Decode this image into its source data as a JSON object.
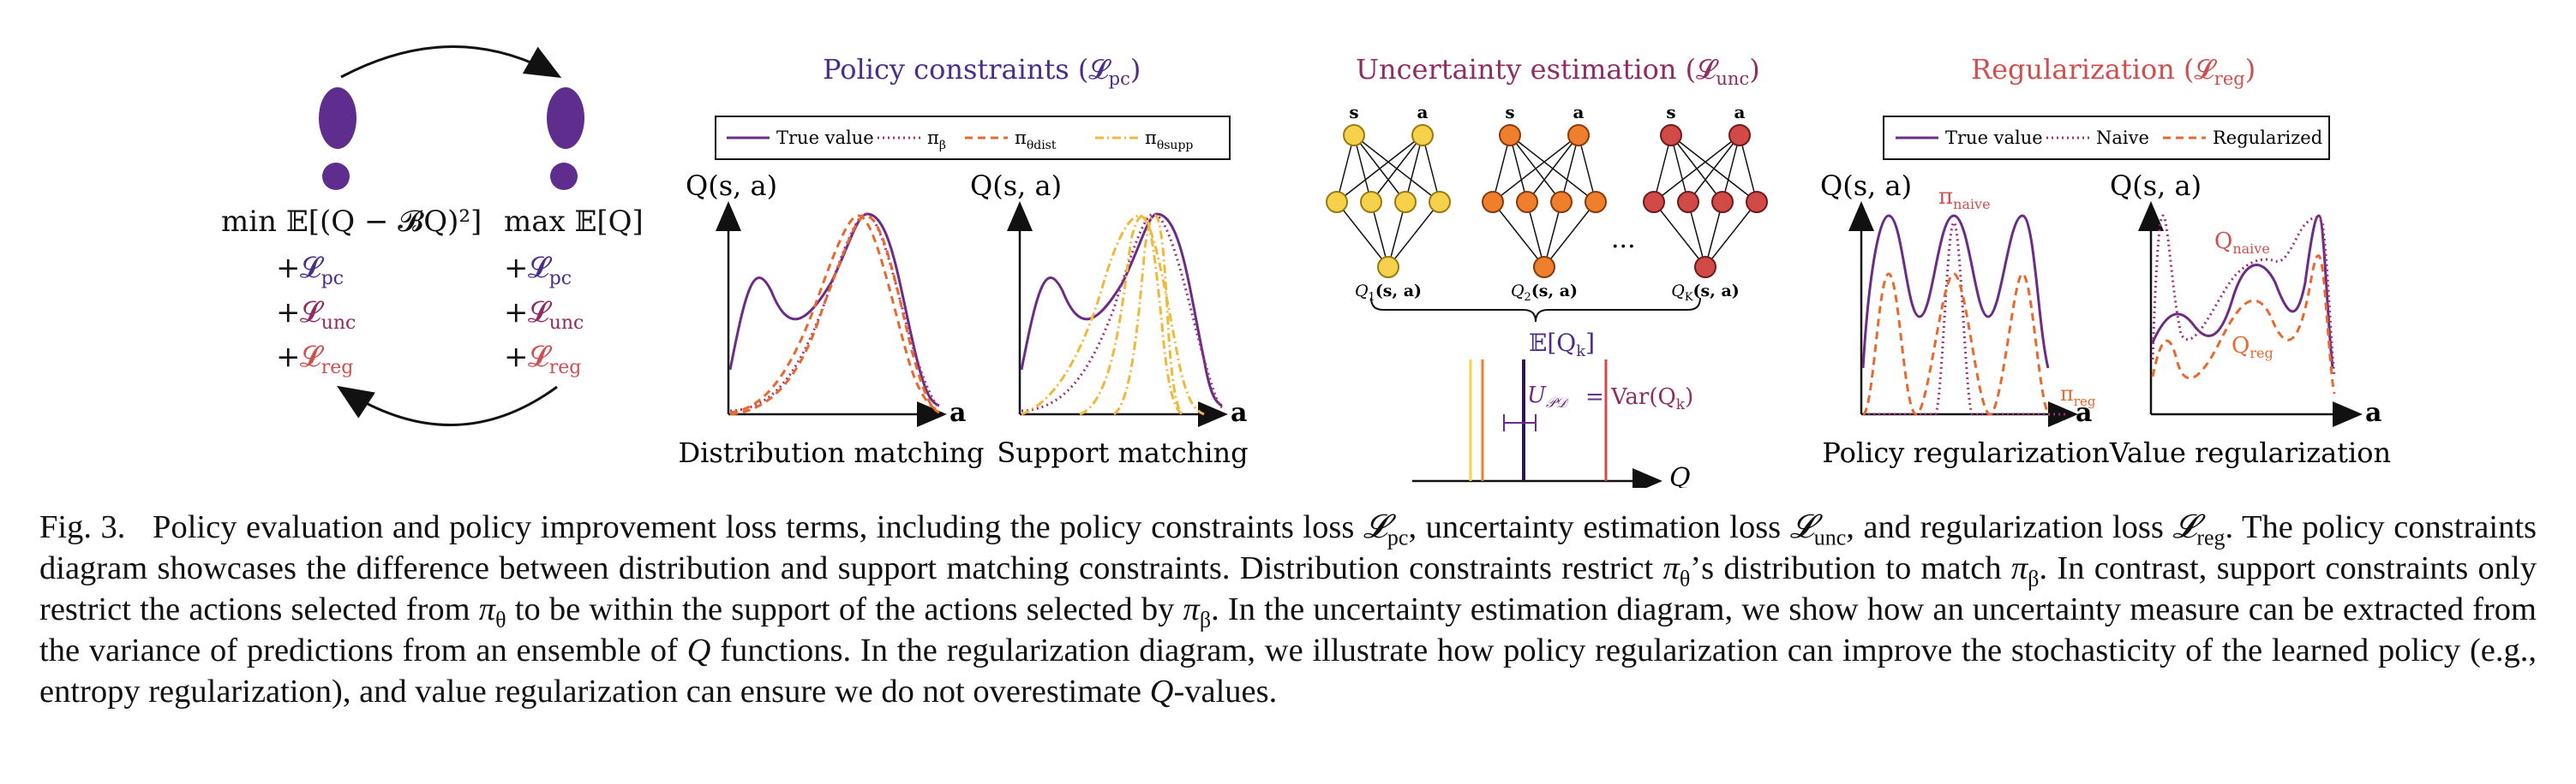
{
  "colors": {
    "purple": "#6a2c86",
    "purple_deep": "#3f1b68",
    "red": "#cf4f4f",
    "orange": "#e8692e",
    "yellow_fill": "#f6d24c",
    "orange_fill": "#ee7f2d",
    "red_fill": "#d14a47",
    "gold": "#f0b83c"
  },
  "left_panel": {
    "min_expr": "min 𝔼[(Q − 𝓑Q)²]",
    "max_expr": "max 𝔼[Q]",
    "plus": "+",
    "terms": [
      "𝓛",
      "𝓛",
      "𝓛"
    ],
    "term_subs": [
      "pc",
      "unc",
      "reg"
    ],
    "icons": [
      "footprint-icon",
      "footprint-icon"
    ]
  },
  "policy_constraints": {
    "title": "Policy constraints (",
    "title_sym": "𝓛",
    "title_sub": "pc",
    "title_close": ")",
    "legend": {
      "true_value": "True value",
      "pi_beta": "π",
      "pi_beta_sub": "β",
      "pi_dist": "π",
      "pi_dist_sub": "θdist",
      "pi_supp": "π",
      "pi_supp_sub": "θsupp"
    },
    "plots": [
      {
        "ylabel": "Q(s, a)",
        "xlabel": "a",
        "caption": "Distribution matching"
      },
      {
        "ylabel": "Q(s, a)",
        "xlabel": "a",
        "caption": "Support matching"
      }
    ]
  },
  "uncertainty": {
    "title": "Uncertainty estimation (",
    "title_sym": "𝓛",
    "title_sub": "unc",
    "title_close": ")",
    "input_labels": [
      "s",
      "a"
    ],
    "nets": [
      {
        "output_label": "Q",
        "output_sub": "1",
        "output_args": "(s, a)"
      },
      {
        "output_label": "Q",
        "output_sub": "2",
        "output_args": "(s, a)"
      },
      {
        "output_label": "Q",
        "output_sub": "K",
        "output_args": "(s, a)"
      }
    ],
    "ellipsis": "···",
    "expectation": "𝔼[Q",
    "expectation_sub": "k",
    "expectation_close": "]",
    "u_label": "U",
    "u_sub": "𝒫𝒟",
    "equals": "=",
    "var_label": "Var(Q",
    "var_sub": "k",
    "var_close": ")",
    "q_axis": "Q"
  },
  "regularization": {
    "title": "Regularization (",
    "title_sym": "𝓛",
    "title_sub": "reg",
    "title_close": ")",
    "legend": {
      "true_value": "True value",
      "naive": "Naive",
      "regularized": "Regularized"
    },
    "plots": [
      {
        "ylabel": "Q(s, a)",
        "xlabel": "a",
        "caption": "Policy regularization",
        "top_label": "π",
        "top_sub": "naive",
        "side_label": "π",
        "side_sub": "reg"
      },
      {
        "ylabel": "Q(s, a)",
        "xlabel": "a",
        "caption": "Value regularization",
        "top_label": "Q",
        "top_sub": "naive",
        "side_label": "Q",
        "side_sub": "reg"
      }
    ]
  },
  "caption": {
    "fig": "Fig. 3.",
    "s1": "Policy evaluation and policy improvement loss terms, including the policy constraints loss ",
    "l_pc": "pc",
    "s2": ", uncertainty estimation loss ",
    "l_unc": "unc",
    "s3": ", and regularization loss ",
    "l_reg": "reg",
    "s4": ". The policy constraints diagram showcases the difference between distribution and support matching constraints. Distribution constraints restrict ",
    "s5": "’s distribution to match ",
    "s6": ". In contrast, support constraints only restrict the actions selected from ",
    "s7": " to be within the support of the actions selected by ",
    "s8": ". In the uncertainty estimation diagram, we show how an uncertainty measure can be extracted from the variance of predictions from an ensemble of ",
    "s9": " functions. In the regularization diagram, we illustrate how policy regularization can improve the stochasticity of the learned policy (e.g., entropy regularization), and value regularization can ensure we do not overestimate ",
    "s10": "-values."
  }
}
